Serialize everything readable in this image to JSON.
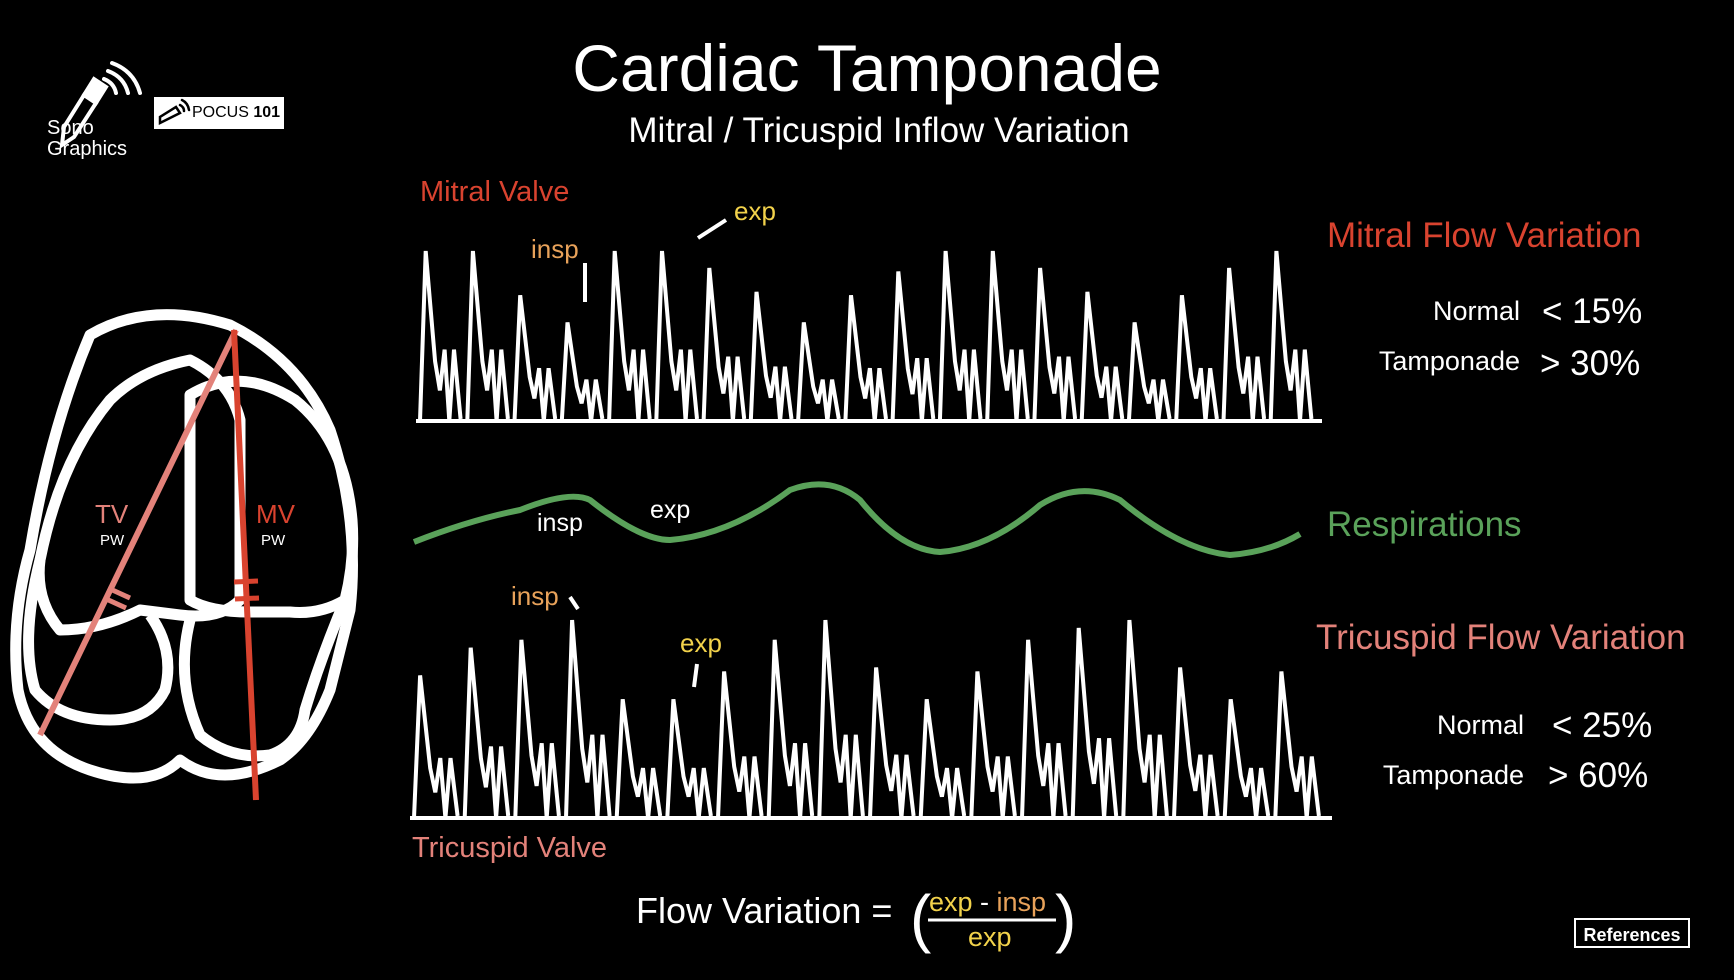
{
  "title": "Cardiac Tamponade",
  "subtitle": "Mitral / Tricuspid Inflow Variation",
  "logos": {
    "sono_line1": "Sono",
    "sono_line2": "Graphics",
    "pocus_prefix": "POCUS ",
    "pocus_number": "101",
    "sono_icon": "ultrasound-probe-icon",
    "pocus_icon": "probe-icon"
  },
  "heart": {
    "tv_label": "TV",
    "tv_sub": "PW",
    "mv_label": "MV",
    "mv_sub": "PW"
  },
  "mitral": {
    "valve_label": "Mitral Valve",
    "insp_label": "insp",
    "exp_label": "exp",
    "peaks": [
      1.0,
      1.0,
      0.74,
      0.58,
      1.0,
      1.0,
      0.9,
      0.76,
      0.58,
      0.74,
      0.88,
      1.0,
      1.0,
      0.9,
      0.76,
      0.58,
      0.74,
      0.9,
      1.0
    ]
  },
  "respiration": {
    "label": "Respirations",
    "insp_label": "insp",
    "exp_label": "exp"
  },
  "tricuspid": {
    "valve_label": "Tricuspid Valve",
    "insp_label": "insp",
    "exp_label": "exp",
    "peaks": [
      0.72,
      0.86,
      0.9,
      1.0,
      0.6,
      0.6,
      0.74,
      0.9,
      1.0,
      0.76,
      0.6,
      0.74,
      0.9,
      0.96,
      1.0,
      0.76,
      0.6,
      0.74
    ]
  },
  "mitral_variation": {
    "title": "Mitral Flow Variation",
    "rows": [
      {
        "label": "Normal",
        "value": "< 15%"
      },
      {
        "label": "Tamponade",
        "value": "> 30%"
      }
    ]
  },
  "tricuspid_variation": {
    "title": "Tricuspid Flow Variation",
    "rows": [
      {
        "label": "Normal",
        "value": "< 25%"
      },
      {
        "label": "Tamponade",
        "value": "> 60%"
      }
    ]
  },
  "formula": {
    "lhs": "Flow Variation =",
    "num_exp": "exp",
    "num_minus": " - ",
    "num_insp": "insp",
    "den": "exp"
  },
  "references_label": "References",
  "colors": {
    "mitral": "#d9432f",
    "tricuspid": "#e3827a",
    "insp": "#e8a25a",
    "exp": "#f2d24b",
    "resp": "#5aa25a"
  }
}
